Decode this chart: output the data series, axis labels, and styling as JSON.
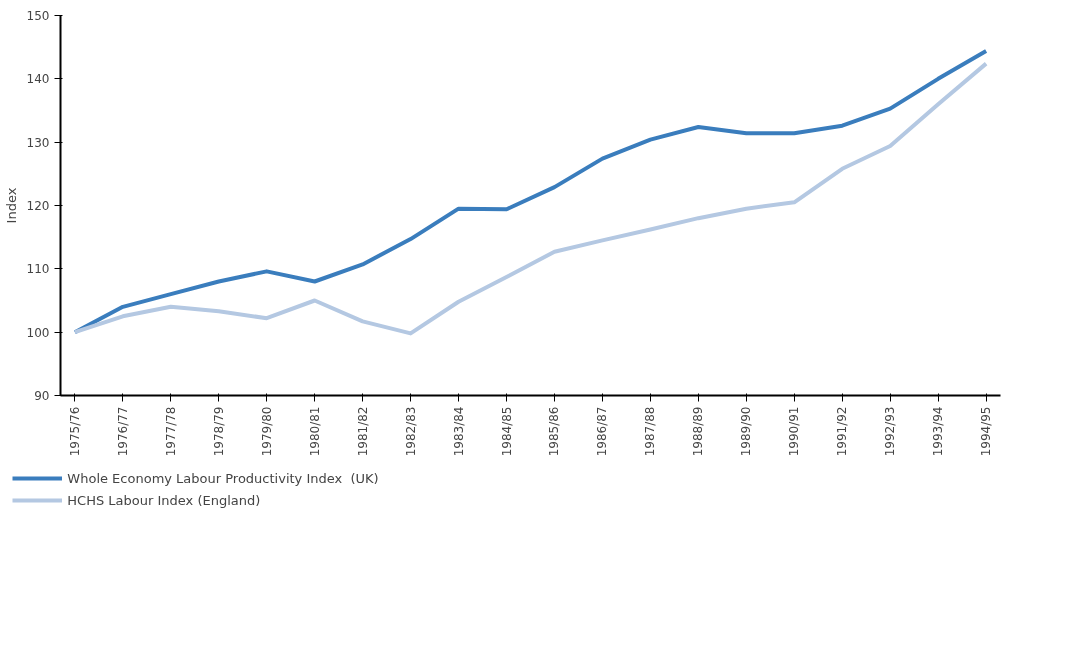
{
  "chart_data": {
    "type": "line",
    "ylabel": "Index",
    "categories": [
      "1975/76",
      "1976/77",
      "1977/78",
      "1978/79",
      "1979/80",
      "1980/81",
      "1981/82",
      "1982/83",
      "1983/84",
      "1984/85",
      "1985/86",
      "1986/87",
      "1987/88",
      "1988/89",
      "1989/90",
      "1990/91",
      "1991/92",
      "1992/93",
      "1993/94",
      "1994/95"
    ],
    "series": [
      {
        "name": "Whole Economy Labour Productivity Index  (UK)",
        "color": "#3a7dbd",
        "values": [
          100,
          104,
          106,
          108,
          109.6,
          108,
          110.7,
          114.7,
          119.5,
          119.4,
          122.9,
          127.4,
          130.4,
          132.4,
          131.4,
          131.4,
          132.6,
          135.3,
          140,
          144.4
        ]
      },
      {
        "name": "HCHS Labour Index (England)",
        "color": "#b4c8e2",
        "values": [
          100,
          102.5,
          104,
          103.3,
          102.2,
          105,
          101.7,
          99.8,
          104.8,
          108.7,
          112.7,
          114.5,
          116.2,
          118,
          119.5,
          120.5,
          125.8,
          129.4,
          136,
          142.4
        ]
      }
    ],
    "ylim": [
      90,
      150
    ],
    "yticks": [
      90,
      100,
      110,
      120,
      130,
      140,
      150
    ],
    "grid": false,
    "legend": "bottom",
    "marker": "none",
    "line_style": "solid"
  }
}
